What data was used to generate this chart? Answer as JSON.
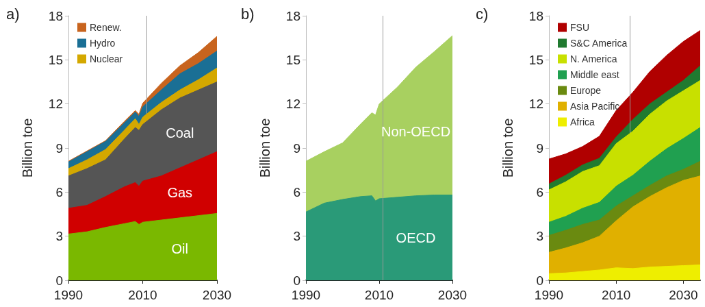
{
  "chart_data": [
    {
      "type": "area",
      "title": "a)",
      "ylabel": "Billion toe",
      "stacked": true,
      "x": [
        1990,
        1995,
        2000,
        2005,
        2008,
        2009,
        2010,
        2015,
        2020,
        2025,
        2030
      ],
      "xlim": [
        1990,
        2030
      ],
      "xticks": [
        1990,
        2010,
        2030
      ],
      "ylim": [
        0,
        18
      ],
      "yticks": [
        0,
        3,
        6,
        9,
        12,
        15,
        18
      ],
      "grid": false,
      "legend": "top left",
      "series": [
        {
          "color": "#7ab800",
          "values": [
            3.15,
            3.3,
            3.6,
            3.85,
            4.0,
            3.8,
            3.95,
            4.1,
            4.25,
            4.4,
            4.55
          ]
        },
        {
          "color": "#d00000",
          "values": [
            1.75,
            1.8,
            2.1,
            2.5,
            2.65,
            2.6,
            2.8,
            3.0,
            3.4,
            3.8,
            4.2
          ]
        },
        {
          "color": "#555555",
          "values": [
            2.2,
            2.5,
            2.5,
            3.25,
            3.75,
            3.8,
            3.85,
            4.5,
            4.75,
            4.75,
            4.75
          ]
        },
        {
          "name": "Nuclear",
          "color": "#d4a800",
          "values": [
            0.5,
            0.6,
            0.7,
            0.6,
            0.6,
            0.4,
            0.5,
            0.5,
            0.55,
            0.7,
            0.95
          ]
        },
        {
          "name": "Hydro",
          "color": "#1a6f95",
          "values": [
            0.45,
            0.55,
            0.55,
            0.5,
            0.45,
            0.55,
            0.7,
            0.85,
            1.1,
            1.1,
            1.15
          ]
        },
        {
          "name": "Renew.",
          "color": "#c8641e",
          "values": [
            0.05,
            0.05,
            0.05,
            0.1,
            0.1,
            0.15,
            0.25,
            0.45,
            0.55,
            0.75,
            1.0
          ]
        }
      ],
      "annotations": [
        "Coal",
        "Gas",
        "Oil"
      ],
      "ref_lines": [
        {
          "axis": "x",
          "value": 2011,
          "color": "#999999"
        }
      ]
    },
    {
      "type": "area",
      "title": "b)",
      "ylabel": "Billion toe",
      "stacked": true,
      "x": [
        1990,
        1995,
        2000,
        2005,
        2008,
        2009,
        2010,
        2015,
        2020,
        2025,
        2030
      ],
      "xlim": [
        1990,
        2030
      ],
      "xticks": [
        1990,
        2010,
        2030
      ],
      "ylim": [
        0,
        18
      ],
      "yticks": [
        0,
        3,
        6,
        9,
        12,
        15,
        18
      ],
      "grid": false,
      "series": [
        {
          "color": "#2a9a78",
          "values": [
            4.65,
            5.25,
            5.5,
            5.7,
            5.75,
            5.4,
            5.55,
            5.65,
            5.75,
            5.8,
            5.8
          ]
        },
        {
          "color": "#a8d060",
          "values": [
            3.45,
            3.5,
            3.85,
            4.95,
            5.65,
            5.85,
            6.45,
            7.5,
            8.75,
            9.75,
            10.85
          ]
        }
      ],
      "annotations": [
        "Non-OECD",
        "OECD"
      ],
      "ref_lines": [
        {
          "axis": "x",
          "value": 2011,
          "color": "#999999"
        }
      ]
    },
    {
      "type": "area",
      "title": "c)",
      "ylabel": "Billion toe",
      "stacked": true,
      "x": [
        1990,
        1995,
        2000,
        2005,
        2010,
        2015,
        2020,
        2025,
        2030,
        2035
      ],
      "xlim": [
        1990,
        2035
      ],
      "xticks": [
        1990,
        2010,
        2030
      ],
      "ylim": [
        0,
        18
      ],
      "yticks": [
        0,
        3,
        6,
        9,
        12,
        15,
        18
      ],
      "grid": false,
      "legend": "top left",
      "series": [
        {
          "name": "Africa",
          "color": "#eeee00",
          "values": [
            0.45,
            0.5,
            0.6,
            0.7,
            0.85,
            0.8,
            0.9,
            0.95,
            1.0,
            1.05
          ]
        },
        {
          "name": "Asia Pacific",
          "color": "#e0b000",
          "values": [
            1.45,
            1.7,
            1.95,
            2.3,
            3.2,
            4.2,
            4.8,
            5.35,
            5.8,
            6.05
          ]
        },
        {
          "name": "Europe",
          "color": "#6a8a10",
          "values": [
            1.15,
            1.2,
            1.25,
            1.1,
            1.0,
            0.75,
            0.75,
            0.8,
            0.75,
            1.0
          ]
        },
        {
          "name": "Middle east",
          "color": "#20a050",
          "values": [
            0.9,
            0.95,
            1.1,
            1.2,
            1.35,
            1.4,
            1.65,
            1.85,
            2.1,
            2.3
          ]
        },
        {
          "name": "N. America",
          "color": "#c8e000",
          "values": [
            2.2,
            2.35,
            2.5,
            2.5,
            2.9,
            3.0,
            3.2,
            3.25,
            3.25,
            3.2
          ]
        },
        {
          "name": "S&C America",
          "color": "#207a30",
          "values": [
            0.4,
            0.45,
            0.45,
            0.5,
            0.45,
            0.8,
            0.7,
            0.6,
            0.7,
            1.0
          ]
        },
        {
          "name": "FSU",
          "color": "#b00000",
          "values": [
            1.7,
            1.45,
            1.25,
            1.5,
            1.8,
            1.85,
            2.2,
            2.5,
            2.65,
            2.4
          ]
        }
      ],
      "ref_lines": [
        {
          "axis": "x",
          "value": 2014,
          "color": "#999999"
        }
      ]
    }
  ]
}
